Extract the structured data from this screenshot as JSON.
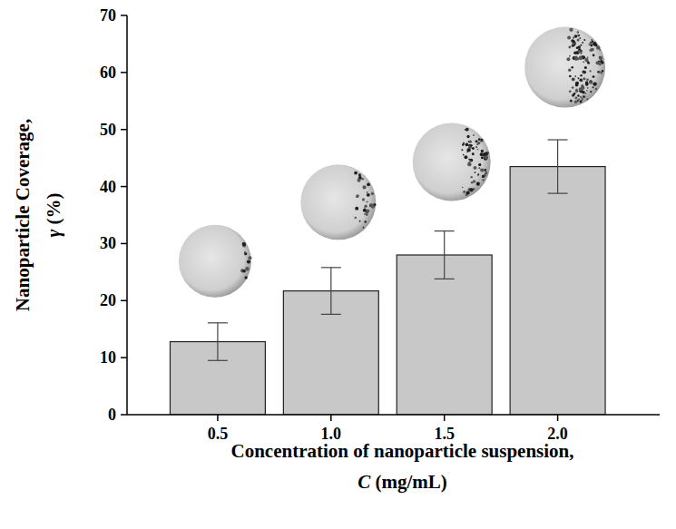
{
  "chart_data": {
    "type": "bar",
    "x_label": "Concentration of nanoparticle suspension, C (mg/mL)",
    "y_label": "Nanoparticle Coverage, γ (%)",
    "categories": [
      "0.5",
      "1.0",
      "1.5",
      "2.0"
    ],
    "values": [
      12.8,
      21.7,
      28.0,
      43.5
    ],
    "errors": [
      3.3,
      4.1,
      4.2,
      4.7
    ],
    "color": "#c8c8c8",
    "ylim": [
      0,
      70
    ],
    "yticks": [
      0,
      10,
      20,
      30,
      40,
      50,
      60,
      70
    ],
    "grid": false
  }
}
